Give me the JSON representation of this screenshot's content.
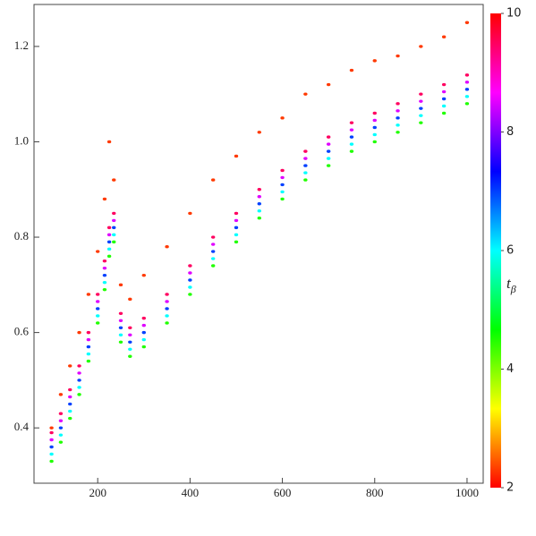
{
  "chart_data": {
    "type": "scatter",
    "xlim": [
      62,
      1035
    ],
    "xticks": [
      200,
      400,
      600,
      800,
      1000
    ],
    "ylim": [
      0.284,
      1.288
    ],
    "yticks": [
      0.4,
      0.6,
      0.8,
      {
        "value": 1,
        "label": "1.0"
      },
      1.2
    ],
    "colorbar": {
      "colormap": "hue",
      "zlim": [
        2,
        10
      ],
      "zticks": [
        2,
        4,
        6,
        8,
        10
      ],
      "label": "t",
      "label_sub": "β"
    },
    "series": [
      {
        "x": [
          100,
          100,
          100,
          100,
          100,
          100,
          120,
          120,
          120,
          120,
          120,
          120,
          140,
          140,
          140,
          140,
          140,
          140,
          160,
          160,
          160,
          160,
          160,
          160,
          180,
          180,
          180,
          180,
          180,
          180,
          200,
          200,
          200,
          200,
          200,
          200,
          215,
          215,
          215,
          215,
          215,
          215,
          225,
          225,
          225,
          225,
          225,
          225,
          235,
          235,
          235,
          235,
          235,
          235,
          250,
          250,
          250,
          250,
          250,
          250,
          270,
          270,
          270,
          270,
          270,
          270,
          300,
          300,
          300,
          300,
          300,
          300,
          350,
          350,
          350,
          350,
          350,
          350,
          400,
          400,
          400,
          400,
          400,
          400,
          450,
          450,
          450,
          450,
          450,
          450,
          500,
          500,
          500,
          500,
          500,
          500,
          550,
          550,
          550,
          550,
          550,
          550,
          600,
          600,
          600,
          600,
          600,
          600,
          650,
          650,
          650,
          650,
          650,
          650,
          700,
          700,
          700,
          700,
          700,
          700,
          750,
          750,
          750,
          750,
          750,
          750,
          800,
          800,
          800,
          800,
          800,
          800,
          850,
          850,
          850,
          850,
          850,
          850,
          900,
          900,
          900,
          900,
          900,
          900,
          950,
          950,
          950,
          950,
          950,
          950,
          1000,
          1000,
          1000,
          1000,
          1000,
          1000
        ],
        "values": [
          0.33,
          0.345,
          0.36,
          0.375,
          0.39,
          0.4,
          0.37,
          0.385,
          0.4,
          0.415,
          0.43,
          0.47,
          0.42,
          0.435,
          0.45,
          0.465,
          0.48,
          0.53,
          0.47,
          0.485,
          0.5,
          0.515,
          0.53,
          0.6,
          0.54,
          0.555,
          0.57,
          0.585,
          0.6,
          0.68,
          0.62,
          0.635,
          0.65,
          0.665,
          0.68,
          0.77,
          0.69,
          0.705,
          0.72,
          0.735,
          0.75,
          0.88,
          0.76,
          0.775,
          0.79,
          0.805,
          0.82,
          1.0,
          0.79,
          0.805,
          0.82,
          0.835,
          0.85,
          0.92,
          0.58,
          0.595,
          0.61,
          0.625,
          0.64,
          0.7,
          0.55,
          0.565,
          0.58,
          0.595,
          0.61,
          0.67,
          0.57,
          0.585,
          0.6,
          0.615,
          0.63,
          0.72,
          0.62,
          0.635,
          0.65,
          0.665,
          0.68,
          0.78,
          0.68,
          0.695,
          0.71,
          0.725,
          0.74,
          0.85,
          0.74,
          0.755,
          0.77,
          0.785,
          0.8,
          0.92,
          0.79,
          0.805,
          0.82,
          0.835,
          0.85,
          0.97,
          0.84,
          0.855,
          0.87,
          0.885,
          0.9,
          1.02,
          0.88,
          0.895,
          0.91,
          0.925,
          0.94,
          1.05,
          0.92,
          0.935,
          0.95,
          0.965,
          0.98,
          1.1,
          0.95,
          0.965,
          0.98,
          0.995,
          1.01,
          1.12,
          0.98,
          0.995,
          1.01,
          1.025,
          1.04,
          1.15,
          1.0,
          1.015,
          1.03,
          1.045,
          1.06,
          1.17,
          1.02,
          1.035,
          1.05,
          1.065,
          1.08,
          1.18,
          1.04,
          1.055,
          1.07,
          1.085,
          1.1,
          1.2,
          1.06,
          1.075,
          1.09,
          1.105,
          1.12,
          1.22,
          1.08,
          1.095,
          1.11,
          1.125,
          1.14,
          1.25
        ],
        "z": [
          4.5,
          6,
          7,
          8.5,
          9.5,
          2.3,
          4.5,
          6,
          7,
          8.5,
          9.5,
          2.3,
          4.5,
          6,
          7,
          8.5,
          9.5,
          2.3,
          4.5,
          6,
          7,
          8.5,
          9.5,
          2.3,
          4.5,
          6,
          7,
          8.5,
          9.5,
          2.3,
          4.5,
          6,
          7,
          8.5,
          9.5,
          2.3,
          4.5,
          6,
          7,
          8.5,
          9.5,
          2.3,
          4.5,
          6,
          7,
          8.5,
          9.5,
          2.3,
          4.5,
          6,
          7,
          8.5,
          9.5,
          2.3,
          4.5,
          6,
          7,
          8.5,
          9.5,
          2.3,
          4.5,
          6,
          7,
          8.5,
          9.5,
          2.3,
          4.5,
          6,
          7,
          8.5,
          9.5,
          2.3,
          4.5,
          6,
          7,
          8.5,
          9.5,
          2.3,
          4.5,
          6,
          7,
          8.5,
          9.5,
          2.3,
          4.5,
          6,
          7,
          8.5,
          9.5,
          2.3,
          4.5,
          6,
          7,
          8.5,
          9.5,
          2.3,
          4.5,
          6,
          7,
          8.5,
          9.5,
          2.3,
          4.5,
          6,
          7,
          8.5,
          9.5,
          2.3,
          4.5,
          6,
          7,
          8.5,
          9.5,
          2.3,
          4.5,
          6,
          7,
          8.5,
          9.5,
          2.3,
          4.5,
          6,
          7,
          8.5,
          9.5,
          2.3,
          4.5,
          6,
          7,
          8.5,
          9.5,
          2.3,
          4.5,
          6,
          7,
          8.5,
          9.5,
          2.3,
          4.5,
          6,
          7,
          8.5,
          9.5,
          2.3,
          4.5,
          6,
          7,
          8.5,
          9.5,
          2.3,
          4.5,
          6,
          7,
          8.5,
          9.5,
          2.3
        ]
      }
    ]
  }
}
